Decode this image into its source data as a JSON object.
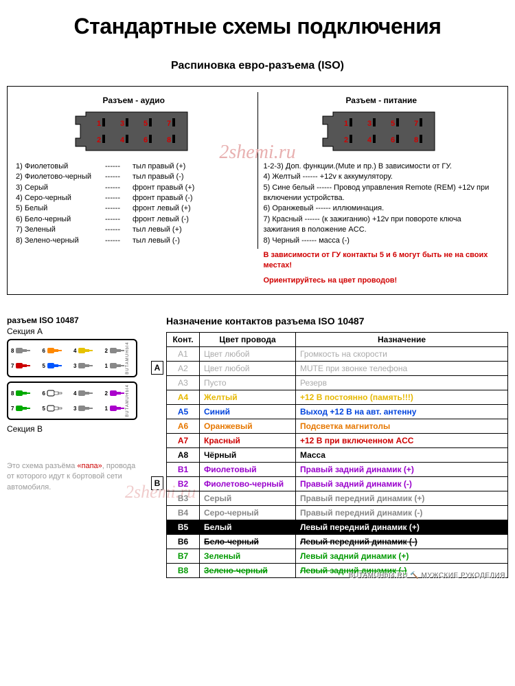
{
  "title": "Стандартные схемы подключения",
  "iso_title": "Распиновка евро-разъема  (ISO)",
  "watermark": "2shemi.ru",
  "audio": {
    "label": "Разъем - аудио",
    "connector_color": "#555555",
    "pin_color": "#d00000",
    "pins": [
      "1",
      "3",
      "5",
      "7",
      "2",
      "4",
      "6",
      "8"
    ],
    "rows": [
      {
        "n": "1) Фиолетовый",
        "d": "тыл правый (+)"
      },
      {
        "n": "2) Фиолетово-черный",
        "d": "тыл правый (-)"
      },
      {
        "n": "3) Серый",
        "d": "фронт правый (+)"
      },
      {
        "n": "4) Серо-черный",
        "d": "фронт правый (-)"
      },
      {
        "n": "5) Белый",
        "d": "фронт левый (+)"
      },
      {
        "n": "6) Бело-черный",
        "d": "фронт левый (-)"
      },
      {
        "n": "7) Зеленый",
        "d": "тыл левый (+)"
      },
      {
        "n": "8) Зелено-черный",
        "d": "тыл левый (-)"
      }
    ]
  },
  "power": {
    "label": "Разъем - питание",
    "lines": [
      "1-2-3) Доп. функции.(Mute и пр.) В зависимости от ГУ.",
      "4) Желтый  ------   +12v  к аккумулятору.",
      "5) Сине белый   ------ Провод управления Remote (REM) +12v при включении устройства.",
      "6) Оранжевый  ------  иллюминация.",
      "7) Красный   ------  (к зажиганию) +12v при повороте ключа зажигания в положение ACC.",
      "8) Черный   ------    масса (-)"
    ],
    "warning1": "В зависимости от ГУ контакты 5 и 6 могут быть не на своих местах!",
    "warning2": "Ориентируйтесь на цвет проводов!"
  },
  "iso10487": {
    "left_title": "разъем ISO 10487",
    "sectionA": "Секция А",
    "sectionB": "Секция В",
    "footnote_prefix": "Это схема разъёма ",
    "footnote_papa": "«папа»",
    "footnote_suffix": ", провода от которого идут к бортовой сети автомобиля.",
    "side_labelA": "BUTAMUHbI4",
    "side_labelB": "BUTAMUHbI4",
    "pinsA": [
      {
        "n": "8",
        "clr": "#888888"
      },
      {
        "n": "6",
        "clr": "#ff8800"
      },
      {
        "n": "4",
        "clr": "#e6c200"
      },
      {
        "n": "2",
        "clr": "#888888"
      },
      {
        "n": "7",
        "clr": "#cc0000"
      },
      {
        "n": "5",
        "clr": "#0055ff"
      },
      {
        "n": "3",
        "clr": "#888888"
      },
      {
        "n": "1",
        "clr": "#888888"
      }
    ],
    "pinsB": [
      {
        "n": "8",
        "clr": "#00aa00"
      },
      {
        "n": "6",
        "clr": "#ffffff"
      },
      {
        "n": "4",
        "clr": "#888888"
      },
      {
        "n": "2",
        "clr": "#aa00cc"
      },
      {
        "n": "7",
        "clr": "#00aa00"
      },
      {
        "n": "5",
        "clr": "#ffffff"
      },
      {
        "n": "3",
        "clr": "#888888"
      },
      {
        "n": "1",
        "clr": "#aa00cc"
      }
    ]
  },
  "table": {
    "title": "Назначение контактов разъема ISO 10487",
    "tagA": "А",
    "tagB": "В",
    "headers": [
      "Конт.",
      "Цвет провода",
      "Назначение"
    ],
    "rows": [
      {
        "k": "A1",
        "c": "Цвет любой",
        "d": "Громкость на скорости",
        "clr": "#aaaaaa",
        "bold": false
      },
      {
        "k": "A2",
        "c": "Цвет любой",
        "d": "MUTE при звонке телефона",
        "clr": "#aaaaaa",
        "bold": false
      },
      {
        "k": "A3",
        "c": "Пусто",
        "d": "Резерв",
        "clr": "#aaaaaa",
        "bold": false
      },
      {
        "k": "A4",
        "c": "Желтый",
        "d": "+12 В постоянно (память!!!)",
        "clr": "#e6b800",
        "bold": true
      },
      {
        "k": "A5",
        "c": "Синий",
        "d": "Выход +12 В на авт. антенну",
        "clr": "#0044dd",
        "bold": true
      },
      {
        "k": "A6",
        "c": "Оранжевый",
        "d": "Подсветка магнитолы",
        "clr": "#e67700",
        "bold": true
      },
      {
        "k": "A7",
        "c": "Красный",
        "d": "+12 В при включенном ACC",
        "clr": "#cc0000",
        "bold": true
      },
      {
        "k": "A8",
        "c": "Чёрный",
        "d": "Масса",
        "clr": "#000000",
        "bold": true
      },
      {
        "k": "B1",
        "c": "Фиолетовый",
        "d": "Правый задний динамик (+)",
        "clr": "#9900cc",
        "bold": true
      },
      {
        "k": "B2",
        "c": "Фиолетово-черный",
        "d": "Правый задний динамик (-)",
        "clr": "#9900cc",
        "bold": true
      },
      {
        "k": "B3",
        "c": "Серый",
        "d": "Правый передний динамик (+)",
        "clr": "#888888",
        "bold": true
      },
      {
        "k": "B4",
        "c": "Серо-черный",
        "d": "Правый передний динамик (-)",
        "clr": "#888888",
        "bold": true
      },
      {
        "k": "B5",
        "c": "Белый",
        "d": "Левый передний динамик (+)",
        "clr": "#000000",
        "bold": true,
        "bg": "#000000",
        "fg": "#ffffff"
      },
      {
        "k": "B6",
        "c": "Бело-черный",
        "d": "Левый передний динамик (-)",
        "clr": "#000000",
        "bold": true,
        "strike": true
      },
      {
        "k": "B7",
        "c": "Зеленый",
        "d": "Левый задний динамик (+)",
        "clr": "#009900",
        "bold": true
      },
      {
        "k": "B8",
        "c": "Зелено-черный",
        "d": "Левый задний динамик (-)",
        "clr": "#009900",
        "bold": true,
        "strike": true
      }
    ],
    "credit": "BUTAMUHbI4.RU  🔨  МУЖСКИЕ РУКОДЕЛИЯ"
  }
}
